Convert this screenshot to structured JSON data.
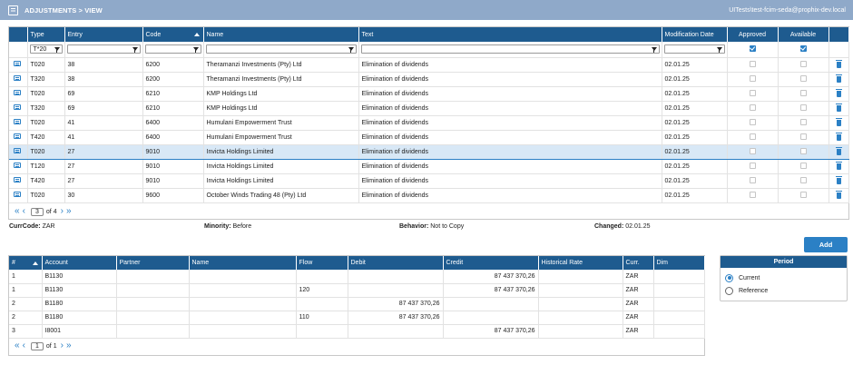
{
  "header": {
    "title": "ADJUSTMENTS > VIEW",
    "user": "UITests\\test-fcim-seda@prophix-dev.local"
  },
  "adjustments": {
    "columns": {
      "type": "Type",
      "entry": "Entry",
      "code": "Code",
      "name": "Name",
      "text": "Text",
      "modification_date": "Modification Date",
      "approved": "Approved",
      "available": "Available"
    },
    "filters": {
      "type": "T*20",
      "entry": "",
      "code": "",
      "name": "",
      "text": "",
      "modification_date": ""
    },
    "rows": [
      {
        "type": "T020",
        "entry": "38",
        "code": "6200",
        "name": "Theramanzi Investments (Pty) Ltd",
        "text": "Elimination of dividends",
        "date": "02.01.25"
      },
      {
        "type": "T320",
        "entry": "38",
        "code": "6200",
        "name": "Theramanzi Investments (Pty) Ltd",
        "text": "Elimination of dividends",
        "date": "02.01.25"
      },
      {
        "type": "T020",
        "entry": "69",
        "code": "6210",
        "name": "KMP Holdings Ltd",
        "text": "Elimination of dividends",
        "date": "02.01.25"
      },
      {
        "type": "T320",
        "entry": "69",
        "code": "6210",
        "name": "KMP Holdings Ltd",
        "text": "Elimination of dividends",
        "date": "02.01.25"
      },
      {
        "type": "T020",
        "entry": "41",
        "code": "6400",
        "name": "Humulani Empowerment Trust",
        "text": "Elimination of dividends",
        "date": "02.01.25"
      },
      {
        "type": "T420",
        "entry": "41",
        "code": "6400",
        "name": "Humulani Empowerment Trust",
        "text": "Elimination of dividends",
        "date": "02.01.25"
      },
      {
        "type": "T020",
        "entry": "27",
        "code": "9010",
        "name": "Invicta Holdings Limited",
        "text": "Elimination of dividends",
        "date": "02.01.25"
      },
      {
        "type": "T120",
        "entry": "27",
        "code": "9010",
        "name": "Invicta Holdings Limited",
        "text": "Elimination of dividends",
        "date": "02.01.25"
      },
      {
        "type": "T420",
        "entry": "27",
        "code": "9010",
        "name": "Invicta Holdings Limited",
        "text": "Elimination of dividends",
        "date": "02.01.25"
      },
      {
        "type": "T020",
        "entry": "30",
        "code": "9600",
        "name": "October Winds Trading 48 (Pty) Ltd",
        "text": "Elimination of dividends",
        "date": "02.01.25"
      }
    ],
    "pager": {
      "page": "3",
      "of_label": "of",
      "total": "4"
    }
  },
  "info": {
    "currcode_label": "CurrCode:",
    "currcode": "ZAR",
    "minority_label": "Minority:",
    "minority": "Before",
    "behavior_label": "Behavior:",
    "behavior": "Not to Copy",
    "changed_label": "Changed:",
    "changed": "02.01.25"
  },
  "add_label": "Add",
  "lines": {
    "columns": {
      "num": "#",
      "account": "Account",
      "partner": "Partner",
      "name": "Name",
      "flow": "Flow",
      "debit": "Debit",
      "credit": "Credit",
      "historical_rate": "Historical Rate",
      "curr": "Curr.",
      "dim": "Dim"
    },
    "rows": [
      {
        "num": "1",
        "account": "B1130",
        "flow": "",
        "debit": "",
        "credit": "87 437 370,26",
        "curr": "ZAR"
      },
      {
        "num": "1",
        "account": "B1130",
        "flow": "120",
        "debit": "",
        "credit": "87 437 370,26",
        "curr": "ZAR"
      },
      {
        "num": "2",
        "account": "B1180",
        "flow": "",
        "debit": "87 437 370,26",
        "credit": "",
        "curr": "ZAR"
      },
      {
        "num": "2",
        "account": "B1180",
        "flow": "110",
        "debit": "87 437 370,26",
        "credit": "",
        "curr": "ZAR"
      },
      {
        "num": "3",
        "account": "I8001",
        "flow": "",
        "debit": "",
        "credit": "87 437 370,26",
        "curr": "ZAR"
      }
    ],
    "pager": {
      "page": "1",
      "of_label": "of",
      "total": "1"
    }
  },
  "period": {
    "title": "Period",
    "options": [
      "Current",
      "Reference"
    ],
    "selected": "Current"
  }
}
